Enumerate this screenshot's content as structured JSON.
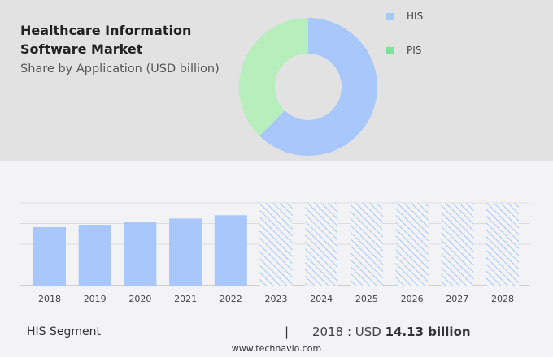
{
  "title": "Healthcare Information Software Market",
  "subtitle": "Share by Application (USD billion)",
  "footer": {
    "segment": "HIS Segment",
    "separator": "|",
    "year_value": "2018 : USD ",
    "value_bold": "14.13 billion",
    "site": "www.technavio.com"
  },
  "chart_data": [
    {
      "type": "pie",
      "donut": true,
      "legend_position": "top-right",
      "slices": [
        {
          "name": "HIS",
          "value": 62.4,
          "color": "#a8c8fc"
        },
        {
          "name": "PIS",
          "value": 37.6,
          "color": "#b8eebc"
        }
      ],
      "legend_colors": {
        "HIS": "#a8c8fc",
        "PIS": "#7ee49a"
      }
    },
    {
      "type": "bar",
      "categories": [
        "2018",
        "2019",
        "2020",
        "2021",
        "2022",
        "2023",
        "2024",
        "2025",
        "2026",
        "2027",
        "2028"
      ],
      "values": [
        14.13,
        14.7,
        15.4,
        16.2,
        17.0,
        null,
        null,
        null,
        null,
        null,
        null
      ],
      "forecast_categories": [
        "2023",
        "2024",
        "2025",
        "2026",
        "2027",
        "2028"
      ],
      "ylim": [
        0,
        20
      ],
      "grid": true,
      "color": "#a8c8fc"
    }
  ]
}
